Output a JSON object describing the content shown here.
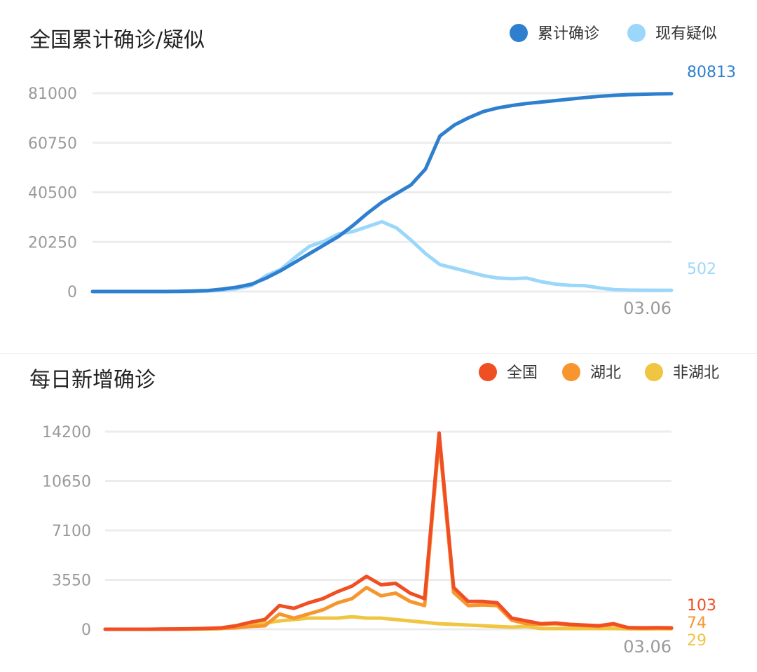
{
  "chart_data": [
    {
      "type": "line",
      "title": "全国累计确诊/疑似",
      "x_end_label": "03.06",
      "ylim": [
        0,
        81000
      ],
      "yticks": [
        0,
        20250,
        40500,
        60750,
        81000
      ],
      "grid": true,
      "legend_position": "top-right",
      "series": [
        {
          "name": "累计确诊",
          "color": "#2f7fcf",
          "last_label": "80813",
          "values": [
            0,
            0,
            0,
            0,
            0,
            0,
            100,
            200,
            400,
            1000,
            1800,
            3000,
            5500,
            8500,
            12000,
            15500,
            19000,
            22500,
            27000,
            32000,
            36500,
            40000,
            43500,
            50000,
            63500,
            68000,
            71000,
            73500,
            75000,
            76000,
            76800,
            77400,
            78000,
            78600,
            79200,
            79700,
            80100,
            80400,
            80550,
            80700,
            80813
          ]
        },
        {
          "name": "现有疑似",
          "color": "#9bd7fa",
          "last_label": "502",
          "values": [
            0,
            0,
            0,
            0,
            0,
            0,
            0,
            0,
            200,
            500,
            1200,
            2500,
            6500,
            9000,
            14000,
            18500,
            20500,
            23500,
            24500,
            26500,
            28500,
            26000,
            21000,
            15500,
            11000,
            9500,
            8000,
            6500,
            5500,
            5200,
            5500,
            4000,
            3000,
            2500,
            2400,
            1500,
            800,
            600,
            550,
            520,
            502
          ]
        }
      ]
    },
    {
      "type": "line",
      "title": "每日新增确诊",
      "x_end_label": "03.06",
      "ylim": [
        0,
        14200
      ],
      "yticks": [
        0,
        3550,
        7100,
        10650,
        14200
      ],
      "grid": true,
      "legend_position": "top-right",
      "series": [
        {
          "name": "全国",
          "color": "#f04e23",
          "last_label": "103",
          "values": [
            0,
            0,
            0,
            0,
            10,
            20,
            40,
            60,
            100,
            250,
            500,
            700,
            1700,
            1500,
            1900,
            2200,
            2700,
            3100,
            3800,
            3200,
            3300,
            2600,
            2200,
            14100,
            3000,
            2000,
            2000,
            1900,
            800,
            600,
            400,
            450,
            350,
            300,
            250,
            400,
            120,
            100,
            110,
            103
          ]
        },
        {
          "name": "湖北",
          "color": "#f7962f",
          "last_label": "74",
          "values": [
            0,
            0,
            0,
            0,
            5,
            10,
            20,
            40,
            60,
            100,
            200,
            250,
            1100,
            800,
            1100,
            1400,
            1900,
            2200,
            3000,
            2400,
            2600,
            2000,
            1700,
            13700,
            2650,
            1700,
            1750,
            1700,
            650,
            400,
            350,
            400,
            300,
            250,
            200,
            350,
            90,
            80,
            80,
            74
          ]
        },
        {
          "name": "非湖北",
          "color": "#efc541",
          "last_label": "29",
          "values": [
            0,
            0,
            0,
            0,
            5,
            10,
            20,
            20,
            40,
            150,
            300,
            450,
            600,
            700,
            800,
            800,
            800,
            900,
            800,
            800,
            700,
            600,
            500,
            400,
            350,
            300,
            250,
            200,
            150,
            200,
            50,
            50,
            50,
            50,
            50,
            50,
            30,
            20,
            30,
            29
          ]
        }
      ]
    }
  ]
}
